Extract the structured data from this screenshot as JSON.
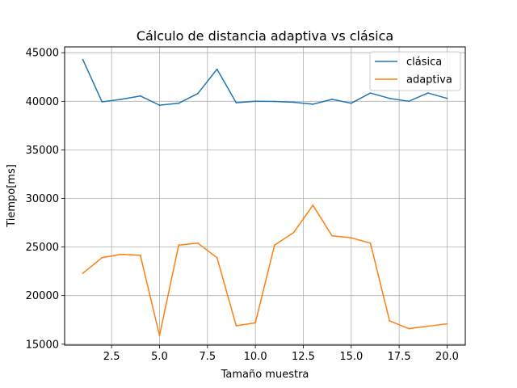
{
  "chart_data": {
    "type": "line",
    "title": "Cálculo de distancia adaptiva vs clásica",
    "xlabel": "Tamaño muestra",
    "ylabel": "Tiempo[ms]",
    "xlim": [
      0.05,
      20.95
    ],
    "ylim": [
      14900,
      45600
    ],
    "xticks": [
      2.5,
      5.0,
      7.5,
      10.0,
      12.5,
      15.0,
      17.5,
      20.0
    ],
    "xtick_labels": [
      "2.5",
      "5.0",
      "7.5",
      "10.0",
      "12.5",
      "15.0",
      "17.5",
      "20.0"
    ],
    "yticks": [
      15000,
      20000,
      25000,
      30000,
      35000,
      40000,
      45000
    ],
    "ytick_labels": [
      "15000",
      "20000",
      "25000",
      "30000",
      "35000",
      "40000",
      "45000"
    ],
    "grid": true,
    "legend_position": "top-right",
    "x": [
      1,
      2,
      3,
      4,
      5,
      6,
      7,
      8,
      9,
      10,
      11,
      12,
      13,
      14,
      15,
      16,
      17,
      18,
      19,
      20
    ],
    "series": [
      {
        "name": "clásica",
        "color": "#1f77b4",
        "values": [
          44300,
          39950,
          40200,
          40550,
          39600,
          39800,
          40800,
          43300,
          39850,
          40000,
          39980,
          39900,
          39700,
          40200,
          39800,
          40850,
          40300,
          40000,
          40850,
          40300
        ]
      },
      {
        "name": "adaptiva",
        "color": "#ff7f0e",
        "values": [
          22300,
          23900,
          24250,
          24150,
          15900,
          25200,
          25400,
          23900,
          16900,
          17200,
          25200,
          26500,
          29300,
          26150,
          25950,
          25400,
          17400,
          16600,
          16850,
          17100
        ]
      }
    ]
  }
}
